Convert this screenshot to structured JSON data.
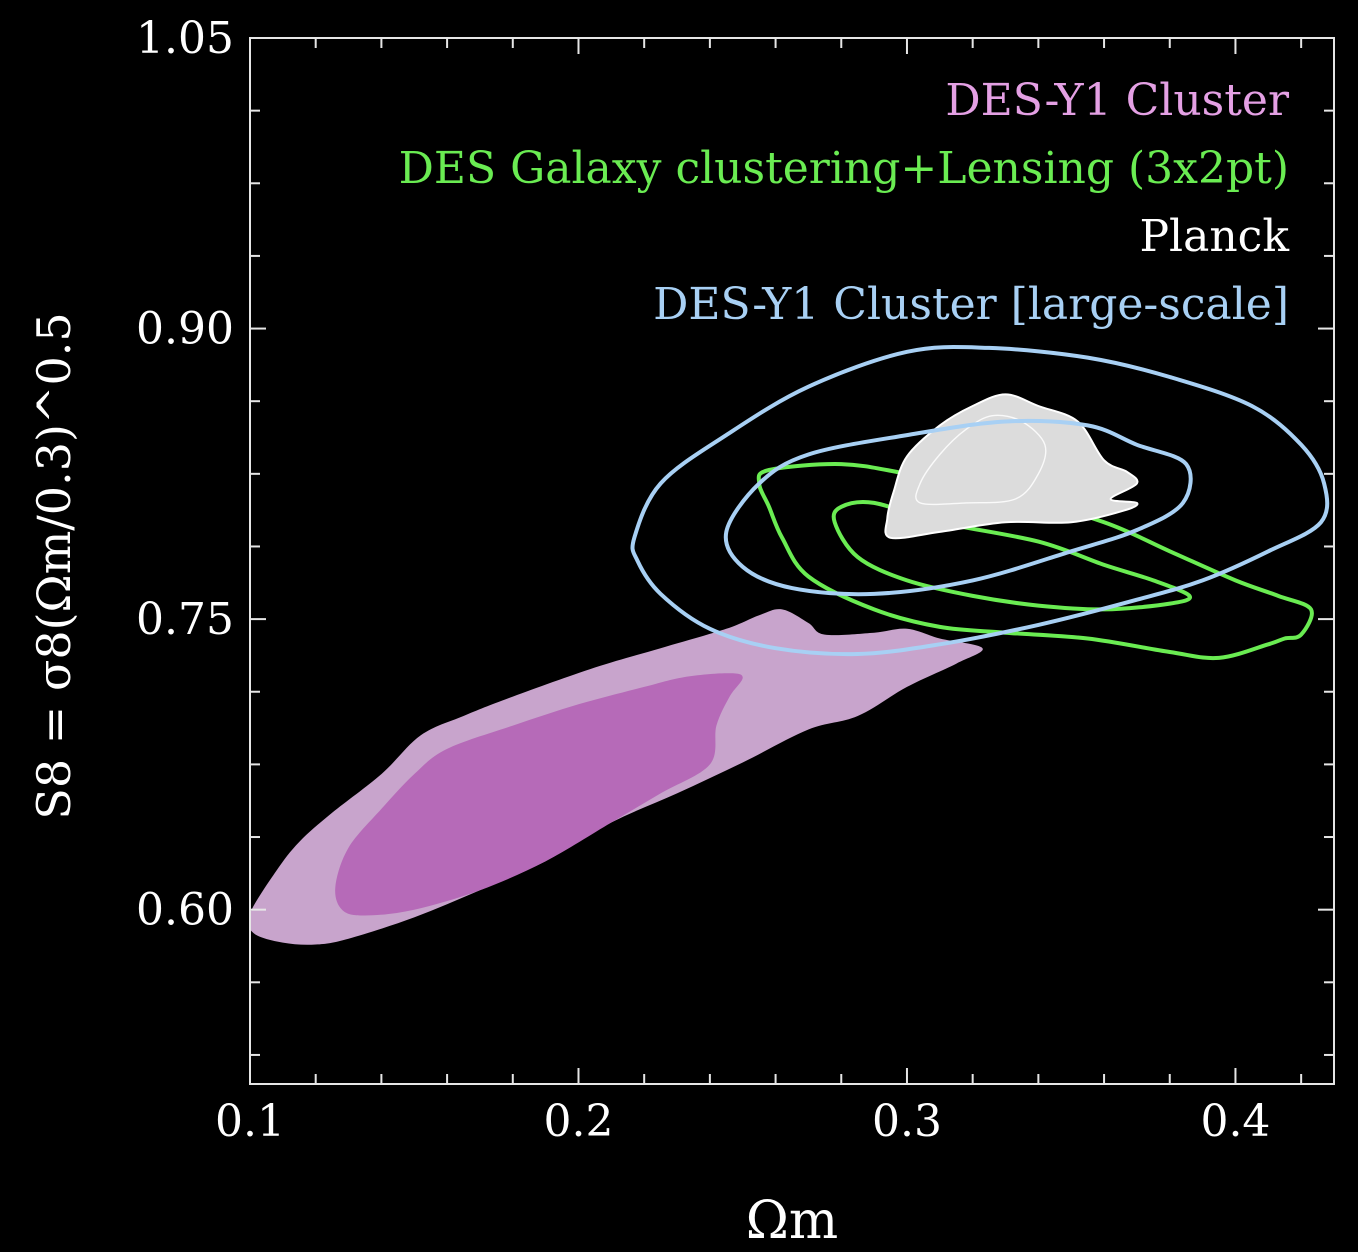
{
  "chart_data": {
    "type": "contour",
    "xlabel": "Ωm",
    "ylabel": "S8 = σ8(Ωm/0.3)^0.5",
    "xlim": [
      0.1,
      0.43
    ],
    "ylim": [
      0.51,
      1.05
    ],
    "x_ticks": [
      "0.1",
      "0.2",
      "0.3",
      "0.4"
    ],
    "y_ticks": [
      "0.60",
      "0.75",
      "0.90",
      "1.05"
    ],
    "grid": false,
    "legend_position": "top-right",
    "series": [
      {
        "name": "DES-Y1 Cluster",
        "color": "#e4a0e4",
        "style": "filled",
        "contours": [
          {
            "level": "95%",
            "fill": "#c8a4cc",
            "points": [
              [
                0.101,
                0.588
              ],
              [
                0.11,
                0.583
              ],
              [
                0.12,
                0.582
              ],
              [
                0.13,
                0.585
              ],
              [
                0.15,
                0.596
              ],
              [
                0.17,
                0.61
              ],
              [
                0.19,
                0.625
              ],
              [
                0.21,
                0.645
              ],
              [
                0.23,
                0.66
              ],
              [
                0.25,
                0.676
              ],
              [
                0.27,
                0.693
              ],
              [
                0.285,
                0.7
              ],
              [
                0.3,
                0.715
              ],
              [
                0.315,
                0.727
              ],
              [
                0.323,
                0.735
              ],
              [
                0.31,
                0.74
              ],
              [
                0.3,
                0.745
              ],
              [
                0.29,
                0.743
              ],
              [
                0.275,
                0.742
              ],
              [
                0.27,
                0.748
              ],
              [
                0.262,
                0.755
              ],
              [
                0.255,
                0.752
              ],
              [
                0.245,
                0.745
              ],
              [
                0.225,
                0.735
              ],
              [
                0.205,
                0.725
              ],
              [
                0.18,
                0.71
              ],
              [
                0.165,
                0.7
              ],
              [
                0.152,
                0.69
              ],
              [
                0.14,
                0.67
              ],
              [
                0.125,
                0.65
              ],
              [
                0.115,
                0.635
              ],
              [
                0.108,
                0.62
              ],
              [
                0.1,
                0.598
              ]
            ]
          },
          {
            "level": "68%",
            "fill": "#b66ab8",
            "points": [
              [
                0.128,
                0.6
              ],
              [
                0.135,
                0.597
              ],
              [
                0.15,
                0.6
              ],
              [
                0.17,
                0.61
              ],
              [
                0.19,
                0.625
              ],
              [
                0.21,
                0.645
              ],
              [
                0.225,
                0.66
              ],
              [
                0.24,
                0.675
              ],
              [
                0.242,
                0.695
              ],
              [
                0.246,
                0.71
              ],
              [
                0.25,
                0.72
              ],
              [
                0.245,
                0.722
              ],
              [
                0.232,
                0.72
              ],
              [
                0.22,
                0.715
              ],
              [
                0.2,
                0.706
              ],
              [
                0.18,
                0.695
              ],
              [
                0.16,
                0.683
              ],
              [
                0.15,
                0.67
              ],
              [
                0.14,
                0.652
              ],
              [
                0.13,
                0.632
              ],
              [
                0.126,
                0.612
              ]
            ]
          }
        ]
      },
      {
        "name": "DES Galaxy clustering+Lensing (3x2pt)",
        "color": "#6aec52",
        "style": "line",
        "contours": [
          {
            "level": "95%",
            "points": [
              [
                0.258,
                0.827
              ],
              [
                0.28,
                0.83
              ],
              [
                0.3,
                0.825
              ],
              [
                0.33,
                0.815
              ],
              [
                0.36,
                0.8
              ],
              [
                0.38,
                0.785
              ],
              [
                0.4,
                0.77
              ],
              [
                0.413,
                0.762
              ],
              [
                0.423,
                0.755
              ],
              [
                0.42,
                0.742
              ],
              [
                0.415,
                0.74
              ],
              [
                0.41,
                0.737
              ],
              [
                0.395,
                0.73
              ],
              [
                0.38,
                0.733
              ],
              [
                0.355,
                0.74
              ],
              [
                0.33,
                0.743
              ],
              [
                0.31,
                0.746
              ],
              [
                0.29,
                0.755
              ],
              [
                0.27,
                0.772
              ],
              [
                0.262,
                0.792
              ],
              [
                0.258,
                0.808
              ],
              [
                0.255,
                0.82
              ]
            ]
          },
          {
            "level": "68%",
            "points": [
              [
                0.28,
                0.808
              ],
              [
                0.29,
                0.81
              ],
              [
                0.31,
                0.8
              ],
              [
                0.34,
                0.79
              ],
              [
                0.36,
                0.778
              ],
              [
                0.375,
                0.77
              ],
              [
                0.386,
                0.762
              ],
              [
                0.38,
                0.758
              ],
              [
                0.36,
                0.755
              ],
              [
                0.34,
                0.757
              ],
              [
                0.32,
                0.762
              ],
              [
                0.3,
                0.77
              ],
              [
                0.285,
                0.782
              ],
              [
                0.278,
                0.8
              ]
            ]
          }
        ]
      },
      {
        "name": "Planck",
        "color": "#ffffff",
        "style": "filled",
        "contours": [
          {
            "level": "95%",
            "fill": "#dcdcdc",
            "points": [
              [
                0.295,
                0.792
              ],
              [
                0.31,
                0.795
              ],
              [
                0.33,
                0.8
              ],
              [
                0.35,
                0.8
              ],
              [
                0.366,
                0.806
              ],
              [
                0.37,
                0.81
              ],
              [
                0.362,
                0.812
              ],
              [
                0.37,
                0.82
              ],
              [
                0.367,
                0.826
              ],
              [
                0.36,
                0.832
              ],
              [
                0.352,
                0.852
              ],
              [
                0.34,
                0.86
              ],
              [
                0.33,
                0.866
              ],
              [
                0.32,
                0.86
              ],
              [
                0.31,
                0.85
              ],
              [
                0.3,
                0.834
              ],
              [
                0.296,
                0.816
              ],
              [
                0.294,
                0.802
              ]
            ]
          },
          {
            "level": "68%",
            "fill": "none",
            "points": [
              [
                0.304,
                0.81
              ],
              [
                0.318,
                0.81
              ],
              [
                0.333,
                0.812
              ],
              [
                0.34,
                0.825
              ],
              [
                0.342,
                0.84
              ],
              [
                0.335,
                0.852
              ],
              [
                0.326,
                0.855
              ],
              [
                0.318,
                0.848
              ],
              [
                0.31,
                0.835
              ],
              [
                0.304,
                0.82
              ]
            ]
          }
        ]
      },
      {
        "name": "DES-Y1 Cluster [large-scale]",
        "color": "#a8d0f4",
        "style": "line",
        "contours": [
          {
            "level": "95%",
            "points": [
              [
                0.217,
                0.792
              ],
              [
                0.225,
                0.82
              ],
              [
                0.245,
                0.845
              ],
              [
                0.27,
                0.87
              ],
              [
                0.3,
                0.888
              ],
              [
                0.325,
                0.89
              ],
              [
                0.355,
                0.885
              ],
              [
                0.38,
                0.875
              ],
              [
                0.405,
                0.86
              ],
              [
                0.42,
                0.84
              ],
              [
                0.427,
                0.82
              ],
              [
                0.426,
                0.8
              ],
              [
                0.41,
                0.785
              ],
              [
                0.39,
                0.77
              ],
              [
                0.37,
                0.76
              ],
              [
                0.34,
                0.747
              ],
              [
                0.31,
                0.737
              ],
              [
                0.285,
                0.732
              ],
              [
                0.26,
                0.735
              ],
              [
                0.24,
                0.745
              ],
              [
                0.225,
                0.763
              ],
              [
                0.218,
                0.78
              ]
            ]
          },
          {
            "level": "68%",
            "points": [
              [
                0.245,
                0.795
              ],
              [
                0.255,
                0.82
              ],
              [
                0.27,
                0.835
              ],
              [
                0.3,
                0.845
              ],
              [
                0.33,
                0.852
              ],
              [
                0.355,
                0.85
              ],
              [
                0.37,
                0.84
              ],
              [
                0.385,
                0.83
              ],
              [
                0.384,
                0.81
              ],
              [
                0.37,
                0.796
              ],
              [
                0.35,
                0.785
              ],
              [
                0.32,
                0.77
              ],
              [
                0.29,
                0.763
              ],
              [
                0.265,
                0.766
              ],
              [
                0.25,
                0.777
              ]
            ]
          }
        ]
      }
    ]
  }
}
